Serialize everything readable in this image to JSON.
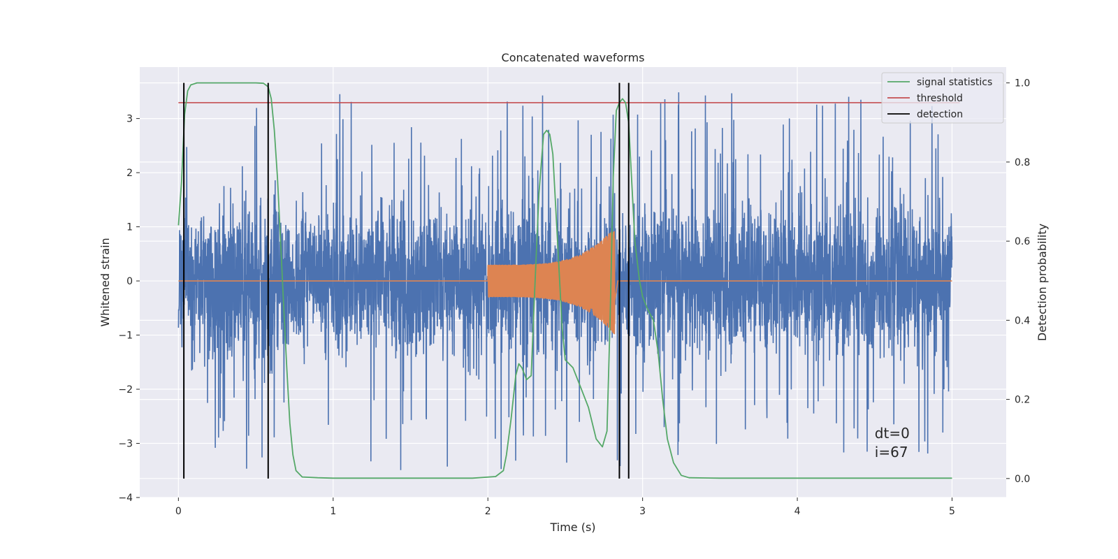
{
  "chart_data": {
    "type": "line",
    "title": "Concatenated waveforms",
    "xlabel": "Time (s)",
    "ylabel": "Whitened strain",
    "y2label": "Detection probability",
    "xlim": [
      -0.25,
      5.35
    ],
    "ylim": [
      -4,
      3.95
    ],
    "y2lim": [
      -0.048,
      1.04
    ],
    "xticks": [
      0,
      1,
      2,
      3,
      4,
      5
    ],
    "yticks": [
      -4,
      -3,
      -2,
      -1,
      0,
      1,
      2,
      3
    ],
    "y2ticks": [
      0.0,
      0.2,
      0.4,
      0.6,
      0.8,
      1.0
    ],
    "xtick_labels": [
      "0",
      "1",
      "2",
      "3",
      "4",
      "5"
    ],
    "ytick_labels": [
      "−4",
      "−3",
      "−2",
      "−1",
      "0",
      "1",
      "2",
      "3"
    ],
    "y2tick_labels": [
      "0.0",
      "0.2",
      "0.4",
      "0.6",
      "0.8",
      "1.0"
    ],
    "grid": true,
    "legend_position": "top-right",
    "legend": [
      {
        "label": "signal statistics",
        "color": "#55a868"
      },
      {
        "label": "threshold",
        "color": "#c44e52"
      },
      {
        "label": "detection",
        "color": "#000000"
      }
    ],
    "strain_noise": {
      "axis": "left",
      "color": "#4c72b0",
      "x_range": [
        0,
        5
      ],
      "envelope_typical": 0.75,
      "peak_abs": 3.6
    },
    "injected_waveform": {
      "axis": "left",
      "color": "#dd8452",
      "x_start": 2.0,
      "x_merger": 2.82,
      "amplitude_start": 0.3,
      "amplitude_peak": 1.0
    },
    "signal_statistics": {
      "axis": "right",
      "color": "#55a868",
      "x": [
        0.0,
        0.02,
        0.04,
        0.06,
        0.08,
        0.12,
        0.2,
        0.3,
        0.4,
        0.5,
        0.55,
        0.58,
        0.6,
        0.62,
        0.64,
        0.66,
        0.68,
        0.7,
        0.72,
        0.74,
        0.76,
        0.8,
        0.9,
        1.0,
        1.5,
        1.9,
        2.05,
        2.1,
        2.12,
        2.15,
        2.18,
        2.2,
        2.22,
        2.25,
        2.28,
        2.3,
        2.33,
        2.36,
        2.38,
        2.4,
        2.42,
        2.45,
        2.48,
        2.5,
        2.55,
        2.6,
        2.65,
        2.7,
        2.74,
        2.77,
        2.79,
        2.81,
        2.83,
        2.85,
        2.87,
        2.89,
        2.91,
        2.93,
        2.95,
        2.98,
        3.0,
        3.03,
        3.07,
        3.1,
        3.13,
        3.16,
        3.2,
        3.25,
        3.3,
        3.5,
        4.0,
        4.5,
        5.0
      ],
      "values": [
        0.64,
        0.75,
        0.92,
        0.98,
        0.995,
        1.0,
        1.0,
        1.0,
        1.0,
        1.0,
        0.999,
        0.99,
        0.96,
        0.88,
        0.76,
        0.6,
        0.44,
        0.28,
        0.14,
        0.06,
        0.02,
        0.004,
        0.002,
        0.001,
        0.001,
        0.001,
        0.005,
        0.02,
        0.06,
        0.15,
        0.26,
        0.29,
        0.28,
        0.25,
        0.26,
        0.45,
        0.72,
        0.87,
        0.88,
        0.87,
        0.82,
        0.6,
        0.38,
        0.3,
        0.28,
        0.23,
        0.18,
        0.1,
        0.08,
        0.12,
        0.4,
        0.76,
        0.93,
        0.95,
        0.96,
        0.95,
        0.9,
        0.75,
        0.6,
        0.5,
        0.46,
        0.43,
        0.4,
        0.32,
        0.2,
        0.1,
        0.04,
        0.008,
        0.002,
        0.001,
        0.001,
        0.001,
        0.001
      ]
    },
    "threshold": {
      "axis": "right",
      "value": 0.95,
      "x_range": [
        0,
        5.05
      ],
      "color": "#c44e52"
    },
    "detections": {
      "axis": "right",
      "x": [
        0.035,
        0.58,
        2.85,
        2.91
      ],
      "y_range": [
        0.0,
        1.0
      ],
      "color": "#000000"
    },
    "annotations": [
      {
        "text": "dt=0",
        "x": 4.5,
        "y": -2.9
      },
      {
        "text": "i=67",
        "x": 4.5,
        "y": -3.25
      }
    ]
  }
}
